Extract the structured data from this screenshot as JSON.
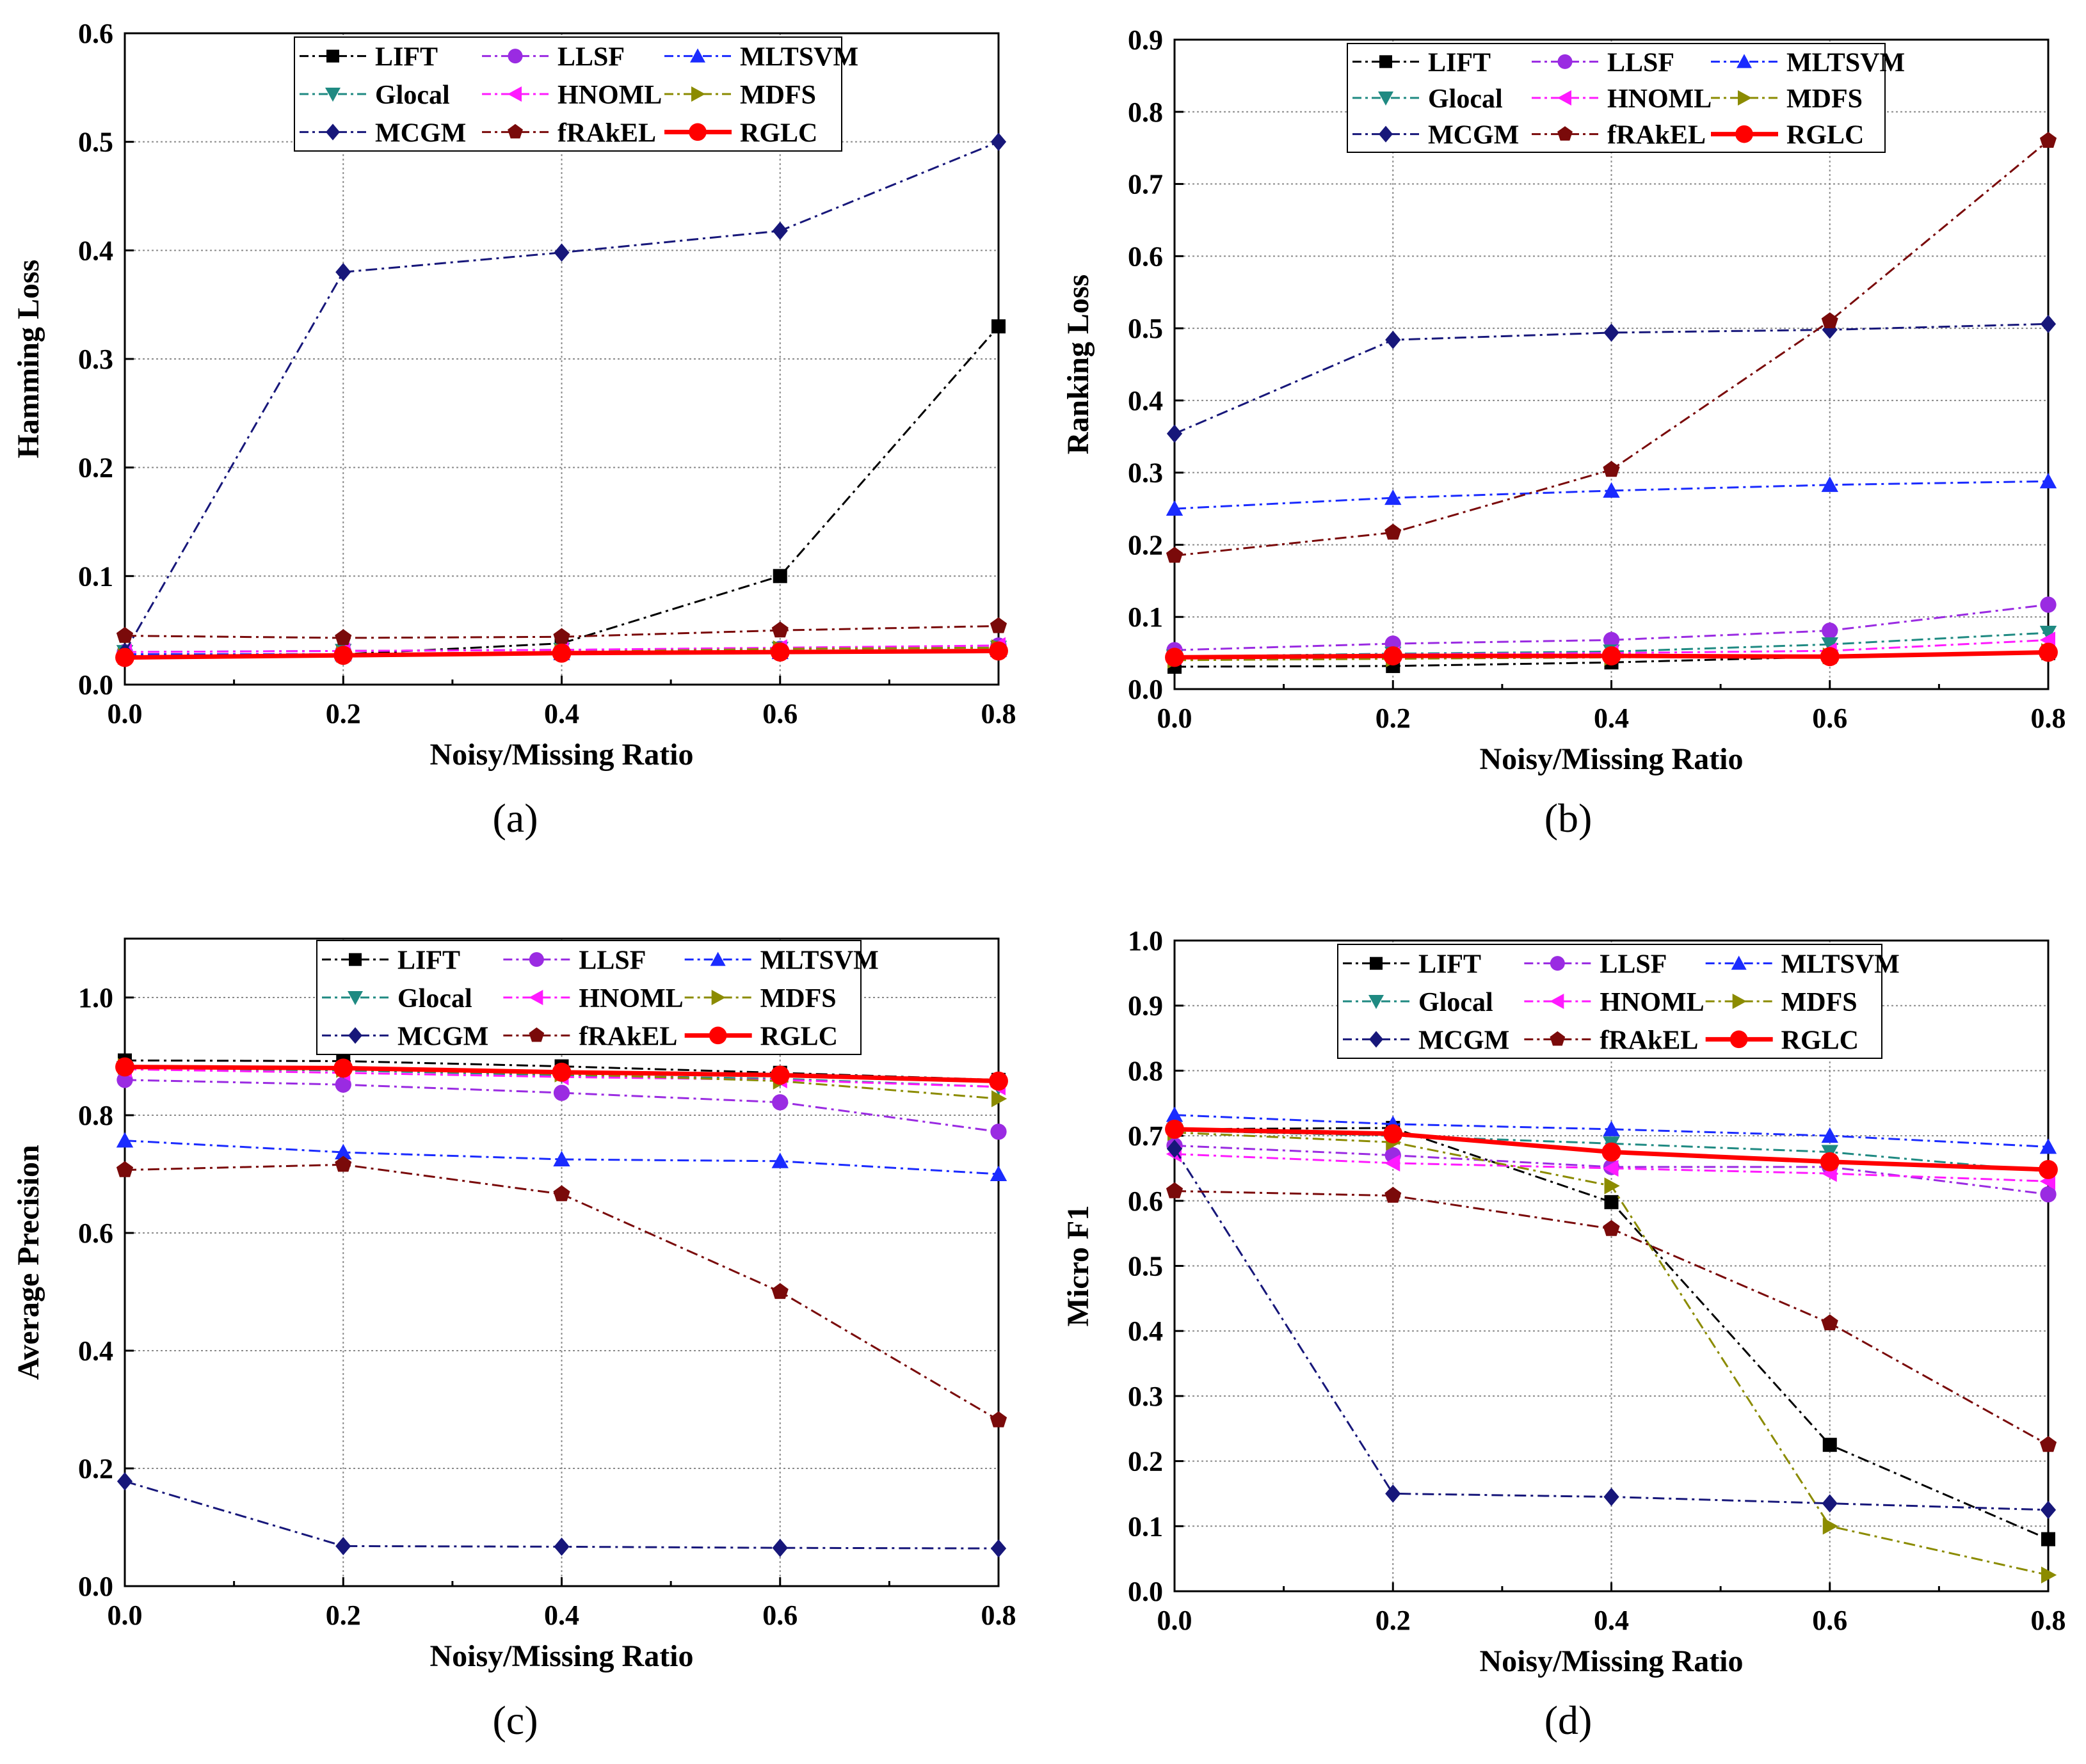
{
  "series_styles": {
    "LIFT": {
      "color": "#000000",
      "marker": "square",
      "dash": "dashdot"
    },
    "LLSF": {
      "color": "#9a2be2",
      "marker": "circle",
      "dash": "dashdot"
    },
    "MLTSVM": {
      "color": "#1a2bff",
      "marker": "triangle",
      "dash": "dashdot"
    },
    "Glocal": {
      "color": "#1f8a82",
      "marker": "triangle-down",
      "dash": "dashdot"
    },
    "HNOML": {
      "color": "#ff1aff",
      "marker": "triangle-left",
      "dash": "dashdot"
    },
    "MDFS": {
      "color": "#8b8b00",
      "marker": "triangle-right",
      "dash": "dashdot"
    },
    "MCGM": {
      "color": "#17177a",
      "marker": "diamond",
      "dash": "dashdot"
    },
    "fRAkEL": {
      "color": "#7a0a0a",
      "marker": "pentagon",
      "dash": "dashdot"
    },
    "RGLC": {
      "color": "#ff0000",
      "marker": "circle",
      "dash": "solid"
    }
  },
  "chart_data": [
    {
      "type": "line",
      "panel_label": "(a)",
      "xlabel": "Noisy/Missing Ratio",
      "ylabel": "Hamming Loss",
      "x": [
        0.0,
        0.2,
        0.4,
        0.6,
        0.8
      ],
      "xlim": [
        0.0,
        0.8
      ],
      "ylim": [
        0.0,
        0.6
      ],
      "xticks": [
        "0.0",
        "0.2",
        "0.4",
        "0.6",
        "0.8"
      ],
      "yticks": [
        "0.0",
        "0.1",
        "0.2",
        "0.3",
        "0.4",
        "0.5",
        "0.6"
      ],
      "legend": [
        "LIFT",
        "LLSF",
        "MLTSVM",
        "Glocal",
        "HNOML",
        "MDFS",
        "MCGM",
        "fRAkEL",
        "RGLC"
      ],
      "series": [
        {
          "name": "LIFT",
          "values": [
            0.026,
            0.028,
            0.038,
            0.1,
            0.33
          ]
        },
        {
          "name": "LLSF",
          "values": [
            0.03,
            0.031,
            0.032,
            0.033,
            0.036
          ]
        },
        {
          "name": "MLTSVM",
          "values": [
            0.028,
            0.028,
            0.029,
            0.03,
            0.032
          ]
        },
        {
          "name": "Glocal",
          "values": [
            0.03,
            0.031,
            0.032,
            0.033,
            0.034
          ]
        },
        {
          "name": "HNOML",
          "values": [
            0.03,
            0.031,
            0.032,
            0.034,
            0.036
          ]
        },
        {
          "name": "MDFS",
          "values": [
            0.026,
            0.028,
            0.03,
            0.033,
            0.034
          ]
        },
        {
          "name": "MCGM",
          "values": [
            0.03,
            0.38,
            0.398,
            0.418,
            0.5
          ]
        },
        {
          "name": "fRAkEL",
          "values": [
            0.045,
            0.043,
            0.044,
            0.05,
            0.054
          ]
        },
        {
          "name": "RGLC",
          "values": [
            0.025,
            0.027,
            0.029,
            0.03,
            0.031
          ]
        }
      ]
    },
    {
      "type": "line",
      "panel_label": "(b)",
      "xlabel": "Noisy/Missing Ratio",
      "ylabel": "Ranking Loss",
      "x": [
        0.0,
        0.2,
        0.4,
        0.6,
        0.8
      ],
      "xlim": [
        0.0,
        0.8
      ],
      "ylim": [
        0.0,
        0.9
      ],
      "xticks": [
        "0.0",
        "0.2",
        "0.4",
        "0.6",
        "0.8"
      ],
      "yticks": [
        "0.0",
        "0.1",
        "0.2",
        "0.3",
        "0.4",
        "0.5",
        "0.6",
        "0.7",
        "0.8",
        "0.9"
      ],
      "legend": [
        "LIFT",
        "LLSF",
        "MLTSVM",
        "Glocal",
        "HNOML",
        "MDFS",
        "MCGM",
        "fRAkEL",
        "RGLC"
      ],
      "series": [
        {
          "name": "LIFT",
          "values": [
            0.031,
            0.032,
            0.037,
            0.045,
            0.05
          ]
        },
        {
          "name": "LLSF",
          "values": [
            0.054,
            0.063,
            0.068,
            0.081,
            0.117
          ]
        },
        {
          "name": "MLTSVM",
          "values": [
            0.25,
            0.265,
            0.275,
            0.283,
            0.288
          ]
        },
        {
          "name": "Glocal",
          "values": [
            0.045,
            0.049,
            0.052,
            0.062,
            0.078
          ]
        },
        {
          "name": "HNOML",
          "values": [
            0.045,
            0.048,
            0.05,
            0.053,
            0.068
          ]
        },
        {
          "name": "MDFS",
          "values": [
            0.04,
            0.042,
            0.044,
            0.046,
            0.052
          ]
        },
        {
          "name": "MCGM",
          "values": [
            0.354,
            0.484,
            0.494,
            0.498,
            0.506
          ]
        },
        {
          "name": "fRAkEL",
          "values": [
            0.185,
            0.217,
            0.304,
            0.51,
            0.76
          ]
        },
        {
          "name": "RGLC",
          "values": [
            0.044,
            0.046,
            0.046,
            0.045,
            0.051
          ]
        }
      ]
    },
    {
      "type": "line",
      "panel_label": "(c)",
      "xlabel": "Noisy/Missing Ratio",
      "ylabel": "Average Precision",
      "x": [
        0.0,
        0.2,
        0.4,
        0.6,
        0.8
      ],
      "xlim": [
        0.0,
        0.8
      ],
      "ylim": [
        0.0,
        1.1
      ],
      "xticks": [
        "0.0",
        "0.2",
        "0.4",
        "0.6",
        "0.8"
      ],
      "yticks": [
        "0.0",
        "0.2",
        "0.4",
        "0.6",
        "0.8",
        "1.0"
      ],
      "legend": [
        "LIFT",
        "LLSF",
        "MLTSVM",
        "Glocal",
        "HNOML",
        "MDFS",
        "MCGM",
        "fRAkEL",
        "RGLC"
      ],
      "series": [
        {
          "name": "LIFT",
          "values": [
            0.893,
            0.892,
            0.883,
            0.872,
            0.86
          ]
        },
        {
          "name": "LLSF",
          "values": [
            0.86,
            0.852,
            0.838,
            0.822,
            0.772
          ]
        },
        {
          "name": "MLTSVM",
          "values": [
            0.757,
            0.737,
            0.725,
            0.722,
            0.7
          ]
        },
        {
          "name": "Glocal",
          "values": [
            0.88,
            0.876,
            0.868,
            0.862,
            0.848
          ]
        },
        {
          "name": "HNOML",
          "values": [
            0.878,
            0.872,
            0.865,
            0.86,
            0.848
          ]
        },
        {
          "name": "MDFS",
          "values": [
            0.883,
            0.878,
            0.87,
            0.858,
            0.828
          ]
        },
        {
          "name": "MCGM",
          "values": [
            0.178,
            0.068,
            0.067,
            0.065,
            0.064
          ]
        },
        {
          "name": "fRAkEL",
          "values": [
            0.707,
            0.716,
            0.666,
            0.5,
            0.282
          ]
        },
        {
          "name": "RGLC",
          "values": [
            0.882,
            0.88,
            0.873,
            0.868,
            0.858
          ]
        }
      ]
    },
    {
      "type": "line",
      "panel_label": "(d)",
      "xlabel": "Noisy/Missing Ratio",
      "ylabel": "Micro F1",
      "x": [
        0.0,
        0.2,
        0.4,
        0.6,
        0.8
      ],
      "xlim": [
        0.0,
        0.8
      ],
      "ylim": [
        0.0,
        1.0
      ],
      "xticks": [
        "0.0",
        "0.2",
        "0.4",
        "0.6",
        "0.8"
      ],
      "yticks": [
        "0.0",
        "0.1",
        "0.2",
        "0.3",
        "0.4",
        "0.5",
        "0.6",
        "0.7",
        "0.8",
        "0.9",
        "1.0"
      ],
      "legend": [
        "LIFT",
        "LLSF",
        "MLTSVM",
        "Glocal",
        "HNOML",
        "MDFS",
        "MCGM",
        "fRAkEL",
        "RGLC"
      ],
      "series": [
        {
          "name": "LIFT",
          "values": [
            0.71,
            0.712,
            0.598,
            0.225,
            0.08
          ]
        },
        {
          "name": "LLSF",
          "values": [
            0.685,
            0.67,
            0.652,
            0.652,
            0.61
          ]
        },
        {
          "name": "MLTSVM",
          "values": [
            0.732,
            0.718,
            0.71,
            0.7,
            0.683
          ]
        },
        {
          "name": "Glocal",
          "values": [
            0.708,
            0.7,
            0.688,
            0.675,
            0.645
          ]
        },
        {
          "name": "HNOML",
          "values": [
            0.672,
            0.658,
            0.65,
            0.642,
            0.63
          ]
        },
        {
          "name": "MDFS",
          "values": [
            0.705,
            0.69,
            0.623,
            0.1,
            0.025
          ]
        },
        {
          "name": "MCGM",
          "values": [
            0.68,
            0.15,
            0.145,
            0.135,
            0.125
          ]
        },
        {
          "name": "fRAkEL",
          "values": [
            0.615,
            0.608,
            0.557,
            0.412,
            0.225
          ]
        },
        {
          "name": "RGLC",
          "values": [
            0.71,
            0.703,
            0.675,
            0.66,
            0.648
          ]
        }
      ]
    }
  ]
}
